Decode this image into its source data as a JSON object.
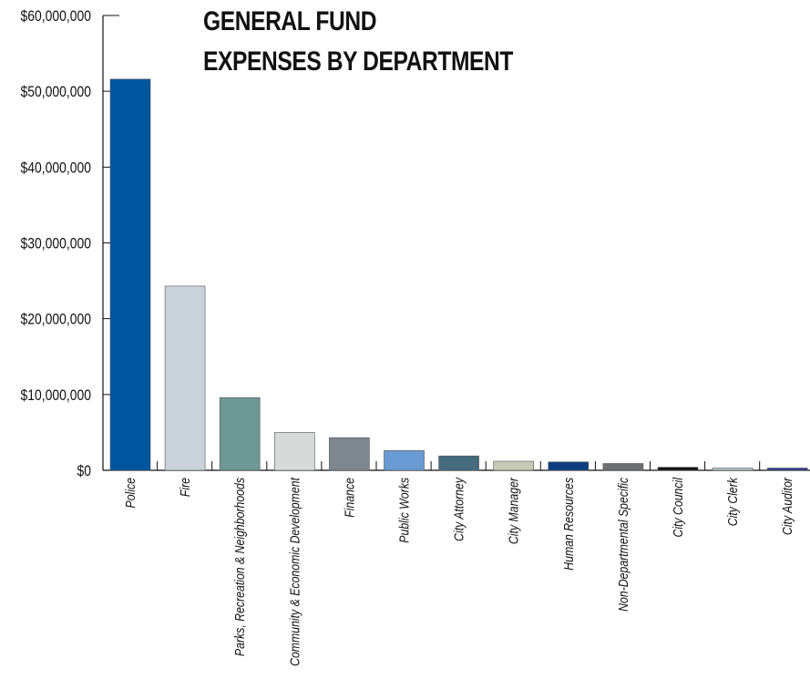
{
  "chart_data": {
    "type": "bar",
    "title_lines": [
      "GENERAL FUND",
      "EXPENSES BY DEPARTMENT"
    ],
    "categories": [
      "Police",
      "Fire",
      "Parks, Recreation & Neighborhoods",
      "Community & Economic Development",
      "Finance",
      "Public Works",
      "City Attorney",
      "City Manager",
      "Human Resources",
      "Non-Departmental Specific",
      "City Council",
      "City Clerk",
      "City Auditor"
    ],
    "values": [
      51600000,
      24300000,
      9600000,
      5000000,
      4300000,
      2600000,
      1900000,
      1200000,
      1100000,
      900000,
      400000,
      300000,
      300000
    ],
    "colors": [
      "#0055a0",
      "#c9d2db",
      "#6e9893",
      "#d6dbd9",
      "#7e8790",
      "#6a9ad4",
      "#456b7e",
      "#c6c9b6",
      "#0d3f80",
      "#6d6e6f",
      "#111111",
      "#b4cacc",
      "#2c3a8c"
    ],
    "y_ticks": [
      0,
      10000000,
      20000000,
      30000000,
      40000000,
      50000000,
      60000000
    ],
    "y_tick_labels": [
      "$0",
      "$10,000,000",
      "$20,000,000",
      "$30,000,000",
      "$40,000,000",
      "$50,000,000",
      "$60,000,000"
    ],
    "ylim": [
      0,
      60000000
    ],
    "grid": false,
    "legend": "none",
    "xlabel": "",
    "ylabel": ""
  }
}
